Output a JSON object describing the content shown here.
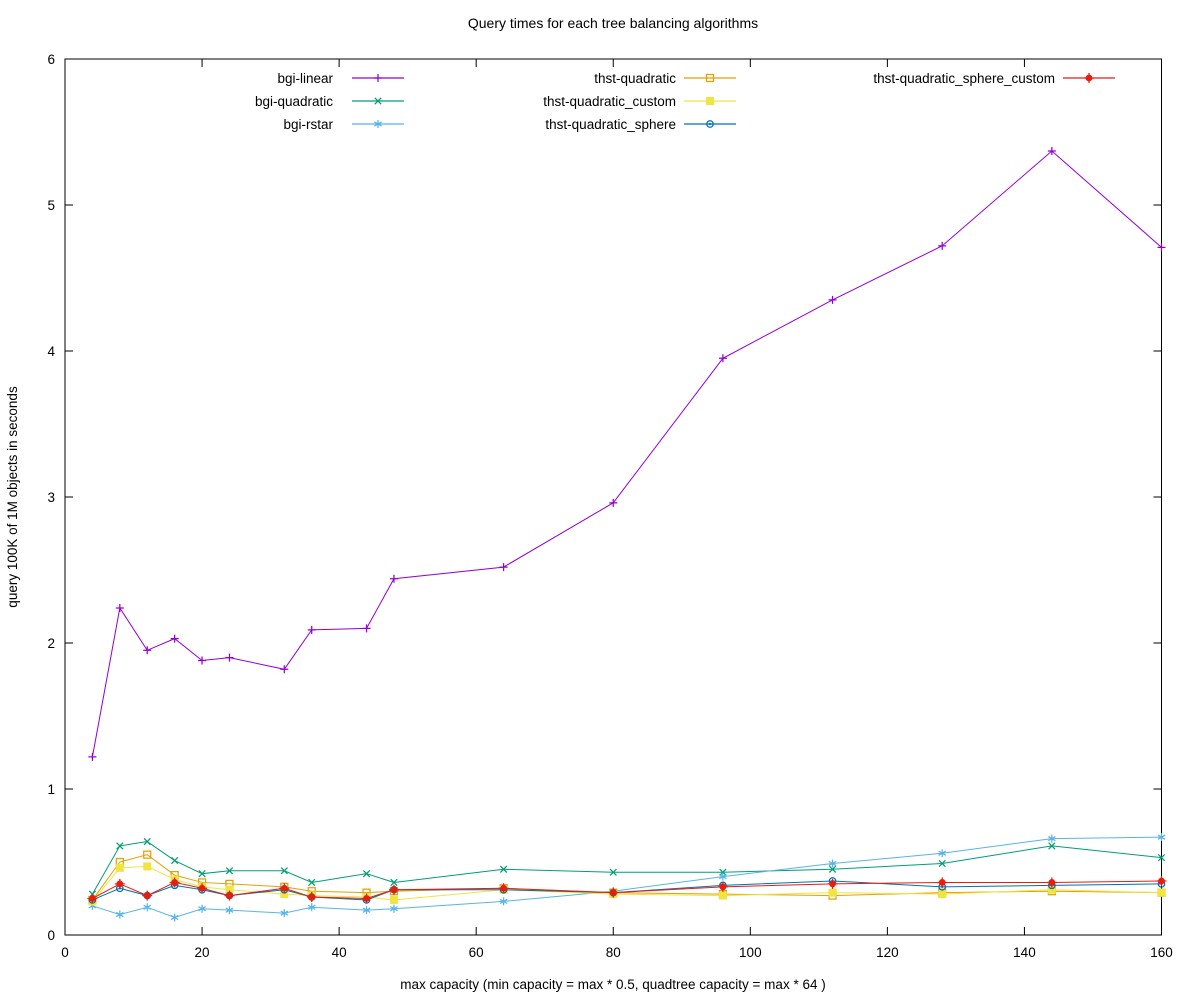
{
  "chart_data": {
    "type": "line",
    "title": "Query times for each tree balancing algorithms",
    "xlabel": "max capacity (min capacity = max * 0.5, quadtree capacity = max * 64 )",
    "ylabel": "query 100K of 1M objects in seconds",
    "xlim": [
      0,
      160
    ],
    "ylim": [
      0,
      6
    ],
    "x_ticks": [
      0,
      20,
      40,
      60,
      80,
      100,
      120,
      140,
      160
    ],
    "y_ticks": [
      0,
      1,
      2,
      3,
      4,
      5,
      6
    ],
    "grid": false,
    "legend": {
      "position": "top-center-inside",
      "columns": 3
    },
    "x": [
      4,
      8,
      12,
      16,
      20,
      24,
      32,
      36,
      44,
      48,
      64,
      80,
      96,
      112,
      128,
      144,
      160
    ],
    "series": [
      {
        "name": "bgi-linear",
        "color": "#9400d3",
        "marker": "plus",
        "values": [
          1.22,
          2.24,
          1.95,
          2.03,
          1.88,
          1.9,
          1.82,
          2.09,
          2.1,
          2.44,
          2.52,
          2.96,
          3.95,
          4.35,
          4.72,
          5.37,
          4.71
        ]
      },
      {
        "name": "bgi-quadratic",
        "color": "#009e73",
        "marker": "cross",
        "values": [
          0.28,
          0.61,
          0.64,
          0.51,
          0.42,
          0.44,
          0.44,
          0.36,
          0.42,
          0.36,
          0.45,
          0.43,
          0.43,
          0.45,
          0.49,
          0.61,
          0.53
        ]
      },
      {
        "name": "bgi-rstar",
        "color": "#56b4e9",
        "marker": "asterisk",
        "values": [
          0.2,
          0.14,
          0.19,
          0.12,
          0.18,
          0.17,
          0.15,
          0.19,
          0.17,
          0.18,
          0.23,
          0.3,
          0.4,
          0.49,
          0.56,
          0.66,
          0.67
        ]
      },
      {
        "name": "thst-quadratic",
        "color": "#e69f00",
        "marker": "square-open",
        "values": [
          0.24,
          0.5,
          0.55,
          0.41,
          0.36,
          0.35,
          0.33,
          0.3,
          0.29,
          0.3,
          0.32,
          0.29,
          0.28,
          0.27,
          0.29,
          0.3,
          0.29
        ]
      },
      {
        "name": "thst-quadratic_custom",
        "color": "#f0e442",
        "marker": "square-filled",
        "values": [
          0.23,
          0.46,
          0.47,
          0.38,
          0.33,
          0.31,
          0.28,
          0.27,
          0.26,
          0.24,
          0.31,
          0.28,
          0.27,
          0.29,
          0.28,
          0.31,
          0.29
        ]
      },
      {
        "name": "thst-quadratic_sphere",
        "color": "#0072b2",
        "marker": "circle-dot-open",
        "values": [
          0.24,
          0.32,
          0.27,
          0.34,
          0.31,
          0.27,
          0.31,
          0.26,
          0.24,
          0.31,
          0.31,
          0.29,
          0.34,
          0.37,
          0.33,
          0.34,
          0.35
        ]
      },
      {
        "name": "thst-quadratic_sphere_custom",
        "color": "#e51e10",
        "marker": "circle-filled-plus",
        "values": [
          0.25,
          0.35,
          0.27,
          0.36,
          0.32,
          0.27,
          0.32,
          0.26,
          0.25,
          0.31,
          0.32,
          0.29,
          0.33,
          0.35,
          0.36,
          0.36,
          0.37
        ]
      }
    ]
  }
}
